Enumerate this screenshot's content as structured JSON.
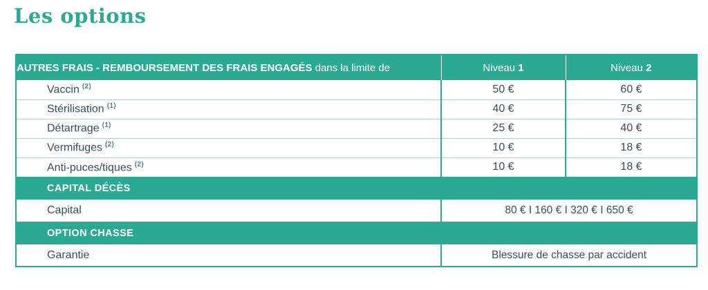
{
  "page": {
    "title": "Les options"
  },
  "colors": {
    "teal": "#2aaa93",
    "text_navy": "#34505e",
    "row_separator": "#b5ccd5",
    "note_blue": "#4a7f9b"
  },
  "table": {
    "header": {
      "title_bold": "AUTRES FRAIS - REMBOURSEMENT DES FRAIS ENGAGÉS",
      "title_regular": " dans la limite de",
      "niveau1_label": "Niveau ",
      "niveau1_number": "1",
      "niveau2_label": "Niveau ",
      "niveau2_number": "2"
    },
    "rows": [
      {
        "label": "Vaccin",
        "note": "(2)",
        "niveau1": "50 €",
        "niveau2": "60 €"
      },
      {
        "label": "Stérilisation",
        "note": "(1)",
        "niveau1": "40 €",
        "niveau2": "75 €"
      },
      {
        "label": "Détartrage",
        "note": "(1)",
        "niveau1": "25 €",
        "niveau2": "40 €"
      },
      {
        "label": "Vermifuges",
        "note": "(2)",
        "niveau1": "10 €",
        "niveau2": "18 €"
      },
      {
        "label": "Anti-puces/tiques",
        "note": "(2)",
        "niveau1": "10 €",
        "niveau2": "18 €"
      }
    ],
    "sections": [
      {
        "header": "CAPITAL DÉCÈS",
        "row_label": "Capital",
        "row_value": "80 € I 160 € I 320 € I 650 €"
      },
      {
        "header": "OPTION CHASSE",
        "row_label": "Garantie",
        "row_value": "Blessure de chasse par accident"
      }
    ]
  }
}
